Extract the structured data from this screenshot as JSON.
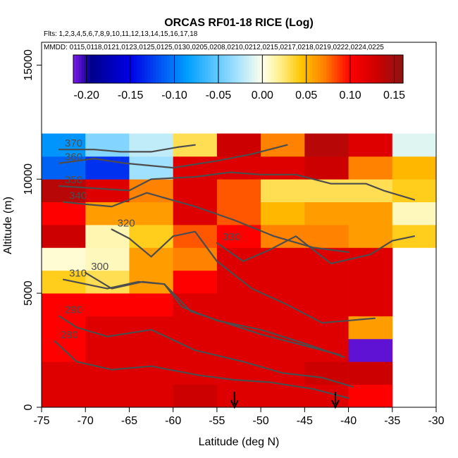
{
  "chart_data": {
    "type": "heatmap",
    "title": "ORCAS RF01-18 RICE (Log)",
    "flights_text": "Flts: 1,2,3,4,5,6,7,8,9,10,11,12,13,14,15,16,17,18",
    "mmdd_text": "MMDD: 0115,0118,0121,0123,0125,0125,0130,0205,0208,0210,0212,0215,0217,0218,0219,0222,0224,0225",
    "xlabel": "Latitude (deg N)",
    "ylabel": "Altitude (m)",
    "xlim": [
      -75,
      -30
    ],
    "ylim": [
      0,
      16000
    ],
    "x_ticks": [
      -75,
      -70,
      -65,
      -60,
      -55,
      -50,
      -45,
      -40,
      -35,
      -30
    ],
    "x_tick_labels": [
      "-75",
      "-70",
      "-65",
      "-60",
      "-55",
      "-50",
      "-45",
      "-40",
      "-35",
      "-30"
    ],
    "y_ticks": [
      0,
      5000,
      10000,
      15000
    ],
    "y_tick_labels": [
      "0",
      "5000",
      "10000",
      "15000"
    ],
    "colorbar": {
      "vmin": -0.215,
      "vmax": 0.16,
      "ticks": [
        -0.2,
        -0.15,
        -0.1,
        -0.05,
        0.0,
        0.05,
        0.1,
        0.15
      ],
      "tick_labels": [
        "-0.20",
        "-0.15",
        "-0.10",
        "-0.05",
        "0.00",
        "0.05",
        "0.10",
        "0.15"
      ]
    },
    "x_bin_edges": [
      -75,
      -70,
      -65,
      -60,
      -55,
      -50,
      -45,
      -40,
      -35,
      -30
    ],
    "y_bin_edges": [
      0,
      1000,
      2000,
      3000,
      4000,
      5000,
      6000,
      7000,
      8000,
      9000,
      10000,
      11000,
      12000
    ],
    "cells": [
      [
        0.12,
        0.12,
        0.12,
        0.13,
        0.12,
        0.12,
        0.12,
        0.1,
        null
      ],
      [
        0.12,
        0.12,
        0.12,
        0.12,
        0.12,
        0.12,
        0.13,
        0.13,
        null
      ],
      [
        0.1,
        0.12,
        0.12,
        0.12,
        0.12,
        0.12,
        0.12,
        -0.21,
        null
      ],
      [
        0.1,
        0.12,
        0.12,
        0.12,
        0.12,
        0.12,
        0.12,
        0.06,
        null
      ],
      [
        0.1,
        0.1,
        0.1,
        0.12,
        0.12,
        0.12,
        0.12,
        0.12,
        null
      ],
      [
        0.04,
        0.03,
        0.06,
        0.1,
        0.12,
        0.12,
        0.12,
        0.12,
        null
      ],
      [
        0.005,
        0.01,
        0.06,
        0.07,
        0.12,
        0.12,
        0.12,
        0.12,
        null
      ],
      [
        0.13,
        0.012,
        0.04,
        0.08,
        0.1,
        0.07,
        0.07,
        0.06,
        0.04
      ],
      [
        0.1,
        0.06,
        0.06,
        0.12,
        0.08,
        0.05,
        0.06,
        0.06,
        0.01
      ],
      [
        0.14,
        0.12,
        0.07,
        0.12,
        0.08,
        0.03,
        0.03,
        0.03,
        0.04
      ],
      [
        -0.11,
        -0.13,
        -0.03,
        0.12,
        0.12,
        0.12,
        0.13,
        0.07,
        0.05
      ],
      [
        -0.09,
        -0.04,
        -0.02,
        0.03,
        0.13,
        0.07,
        0.14,
        0.12,
        -0.01
      ]
    ],
    "contours": [
      {
        "label": "280",
        "points": [
          [
            -73.5,
            2900
          ],
          [
            -71,
            2000
          ],
          [
            -67,
            1650
          ],
          [
            -62.5,
            1800
          ],
          [
            -57,
            1400
          ],
          [
            -53,
            1200
          ],
          [
            -49,
            1100
          ],
          [
            -44,
            800
          ],
          [
            -40,
            400
          ]
        ]
      },
      {
        "label": "290",
        "points": [
          [
            -73,
            4000
          ],
          [
            -71,
            3500
          ],
          [
            -67.5,
            3100
          ],
          [
            -62.5,
            3400
          ],
          [
            -57.5,
            2500
          ],
          [
            -52,
            2000
          ],
          [
            -47.5,
            1500
          ],
          [
            -43,
            1300
          ],
          [
            -39.5,
            900
          ]
        ]
      },
      {
        "label": "300",
        "points": [
          [
            -70,
            5900
          ],
          [
            -67,
            5200
          ],
          [
            -63.5,
            5500
          ],
          [
            -61,
            5400
          ],
          [
            -59,
            4400
          ],
          [
            -55,
            3800
          ],
          [
            -50,
            3400
          ],
          [
            -45,
            2800
          ],
          [
            -40.5,
            2200
          ]
        ]
      },
      {
        "label": "310",
        "points": [
          [
            -72.5,
            5600
          ],
          [
            -67.5,
            5200
          ],
          [
            -64,
            5500
          ],
          [
            -61,
            5400
          ],
          [
            -58,
            4200
          ],
          [
            -54,
            3700
          ],
          [
            -50,
            3200
          ],
          [
            -45,
            2700
          ],
          [
            -41,
            2300
          ]
        ]
      },
      {
        "label": "320",
        "points": [
          [
            -67,
            7800
          ],
          [
            -65,
            7400
          ],
          [
            -62.5,
            6600
          ],
          [
            -60,
            7500
          ],
          [
            -57.5,
            7700
          ],
          [
            -55,
            6400
          ],
          [
            -51,
            5200
          ],
          [
            -47,
            4500
          ],
          [
            -43,
            3700
          ],
          [
            -37,
            3900
          ]
        ]
      },
      {
        "label": "330",
        "points": [
          [
            -55,
            7200
          ],
          [
            -52,
            6400
          ],
          [
            -49,
            6900
          ],
          [
            -46,
            7500
          ],
          [
            -42,
            6300
          ],
          [
            -37.5,
            6700
          ],
          [
            -35,
            7300
          ],
          [
            -32.5,
            7500
          ]
        ]
      },
      {
        "label": "340",
        "points": [
          [
            -72.5,
            9000
          ],
          [
            -70,
            8900
          ],
          [
            -67,
            8800
          ],
          [
            -63,
            9400
          ],
          [
            -57.5,
            8800
          ],
          [
            -53,
            8200
          ],
          [
            -48.5,
            7500
          ],
          [
            -44,
            7000
          ],
          [
            -40,
            6800
          ]
        ]
      },
      {
        "label": "350",
        "points": [
          [
            -73,
            9700
          ],
          [
            -69,
            9600
          ],
          [
            -65,
            9500
          ],
          [
            -62.5,
            10000
          ],
          [
            -57.5,
            10100
          ],
          [
            -53.5,
            10300
          ],
          [
            -50,
            10200
          ],
          [
            -46,
            10200
          ],
          [
            -42,
            9800
          ],
          [
            -38,
            9800
          ],
          [
            -36,
            9500
          ],
          [
            -32.5,
            9100
          ]
        ]
      },
      {
        "label": "360",
        "points": [
          [
            -73,
            10700
          ],
          [
            -69,
            10900
          ],
          [
            -65.5,
            10700
          ],
          [
            -60,
            10500
          ],
          [
            -55,
            10800
          ],
          [
            -51,
            11100
          ],
          [
            -47,
            11500
          ]
        ]
      },
      {
        "label": "370",
        "points": [
          [
            -73,
            11300
          ],
          [
            -69,
            11300
          ],
          [
            -66,
            11200
          ],
          [
            -62.5,
            11200
          ],
          [
            -59.5,
            11400
          ],
          [
            -57.5,
            11500
          ]
        ]
      }
    ],
    "arrows": [
      -53,
      -41.5
    ]
  }
}
